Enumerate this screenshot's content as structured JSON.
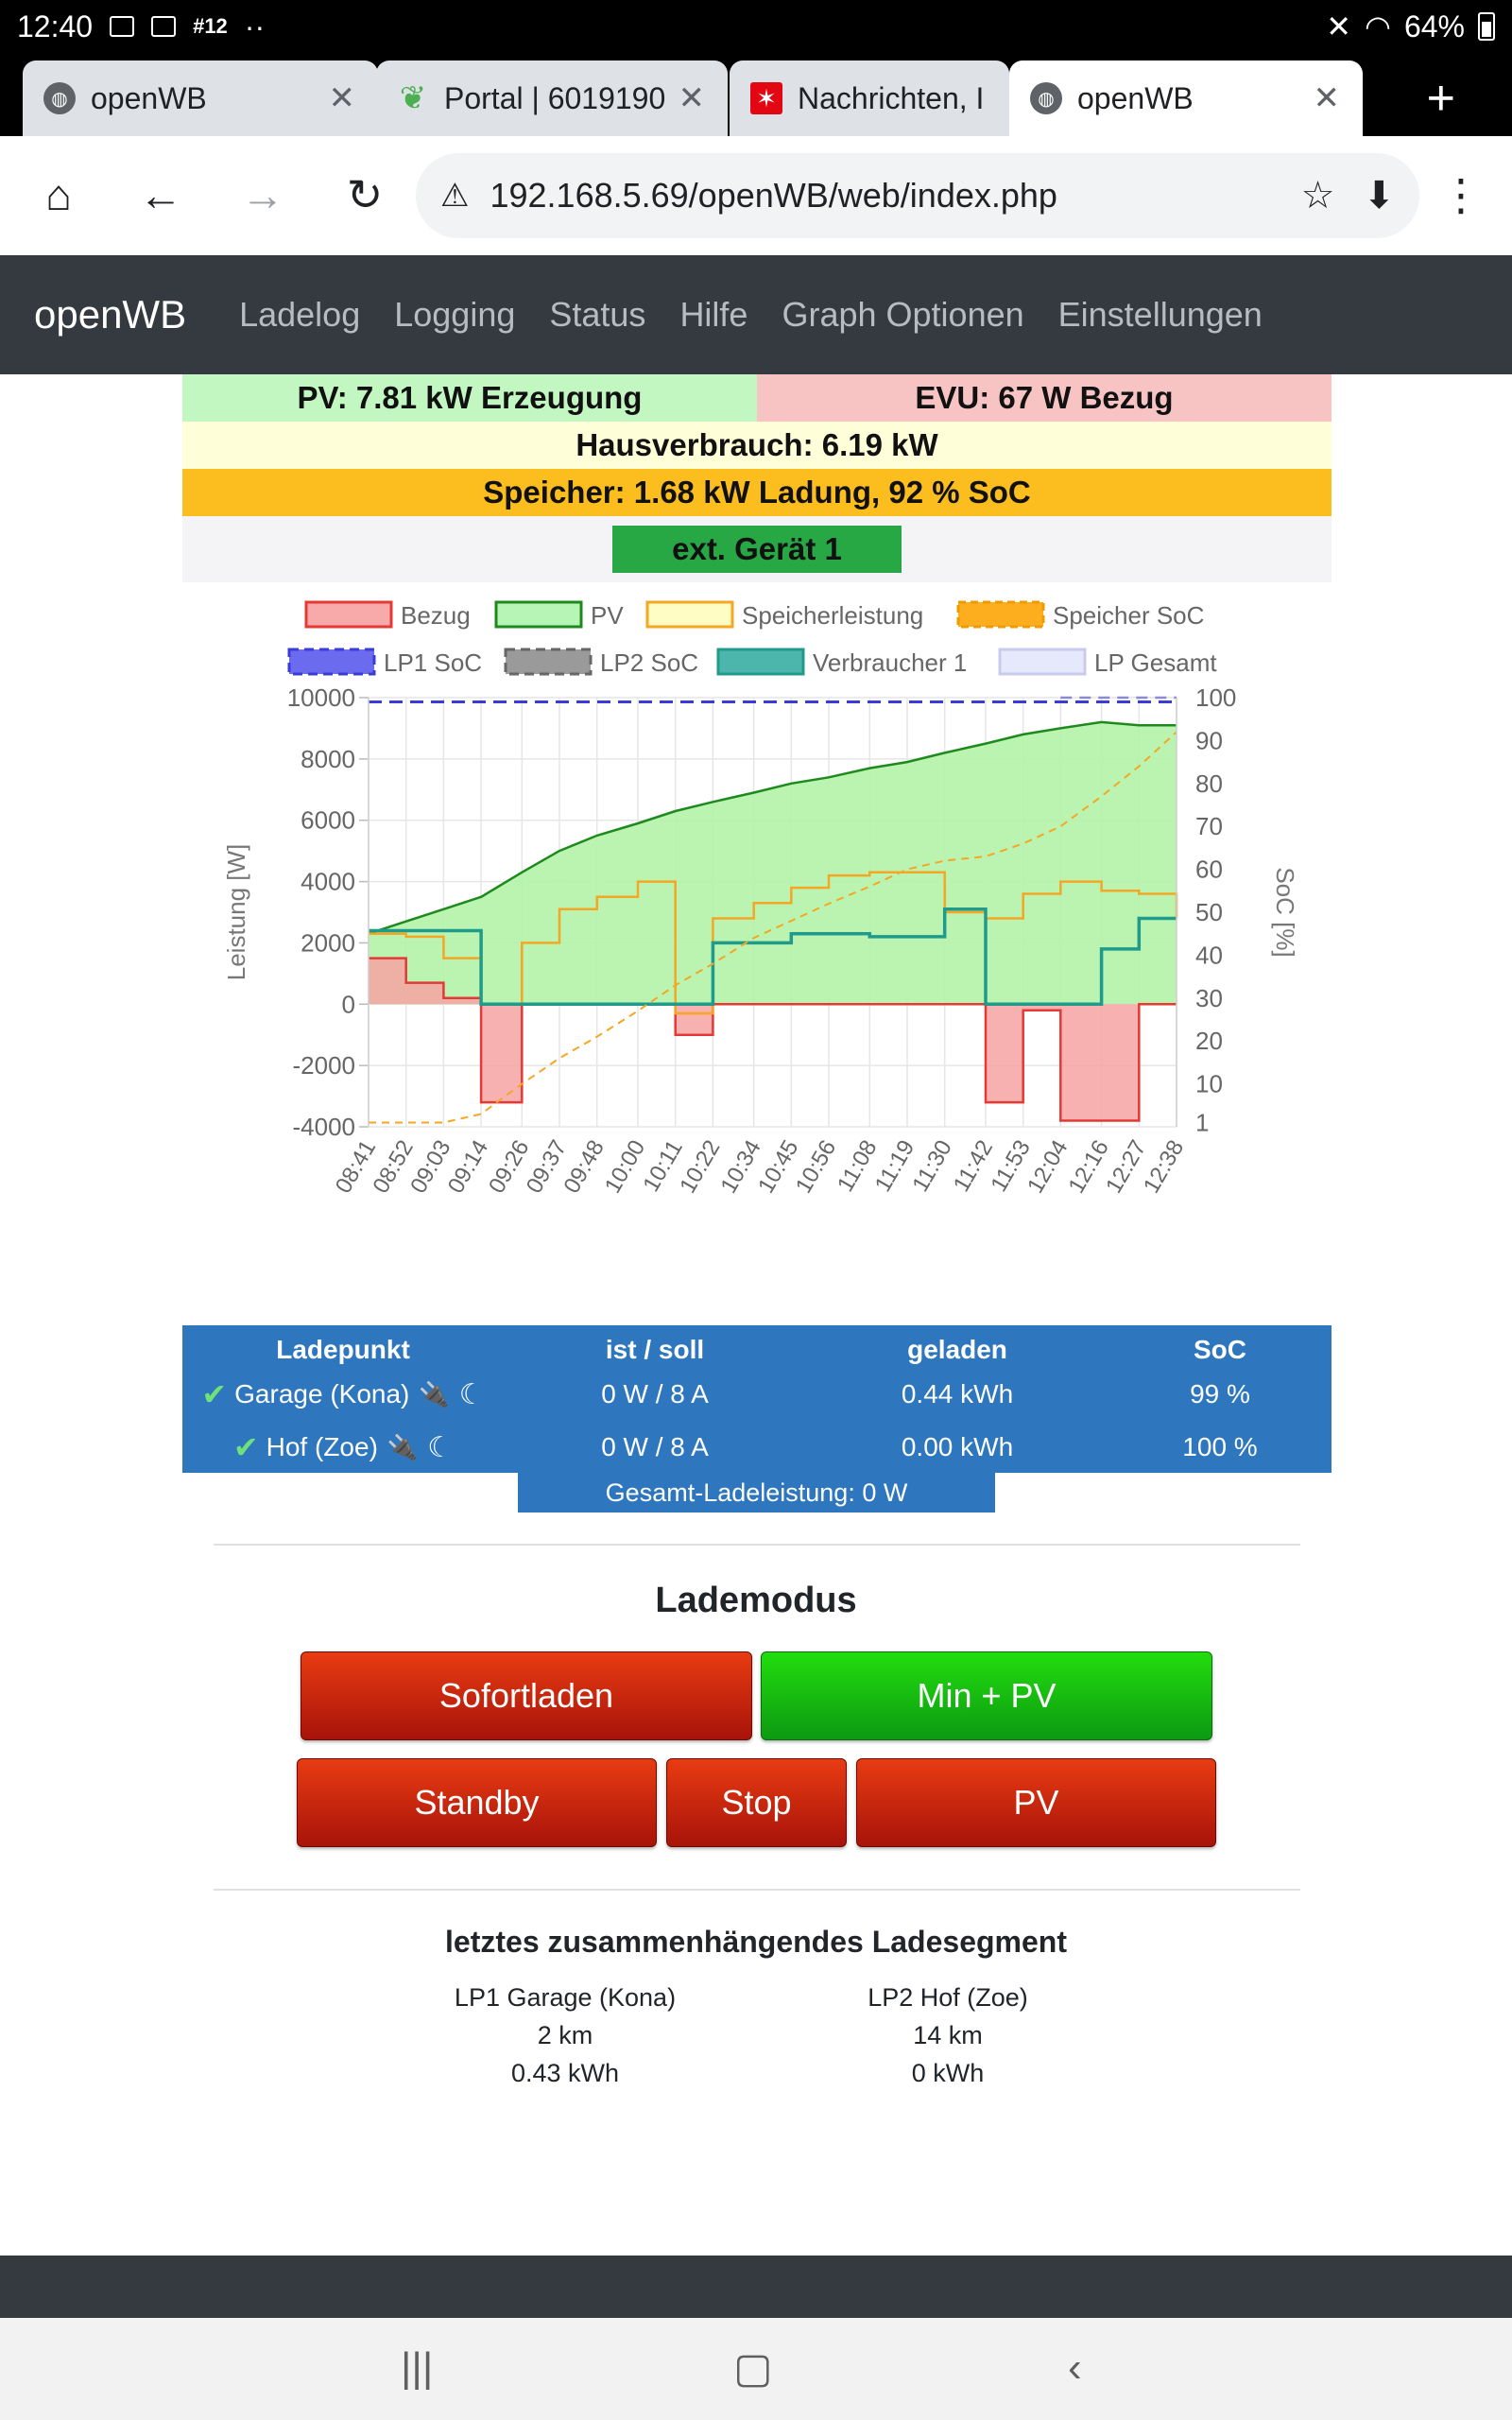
{
  "status_bar": {
    "time": "12:40",
    "extra": "#12",
    "dots": "··",
    "battery": "64%"
  },
  "tabs": [
    {
      "title": "openWB",
      "close": "✕",
      "icon": "globe-icon"
    },
    {
      "title": "Portal | 6019190",
      "close": "✕",
      "icon": "leaf-icon"
    },
    {
      "title": "Nachrichten, I",
      "close": "",
      "icon": "stern-icon"
    },
    {
      "title": "openWB",
      "close": "✕",
      "icon": "globe-icon"
    }
  ],
  "new_tab": "+",
  "address": {
    "url": "192.168.5.69/openWB/web/index.php"
  },
  "navbar": {
    "brand": "openWB",
    "links": [
      "Ladelog",
      "Logging",
      "Status",
      "Hilfe",
      "Graph Optionen",
      "Einstellungen"
    ]
  },
  "summary": {
    "pv": "PV: 7.81 kW Erzeugung",
    "evu": "EVU: 67 W Bezug",
    "haus": "Hausverbrauch: 6.19 kW",
    "speicher": "Speicher: 1.68 kW Ladung, 92 % SoC",
    "ext": "ext. Gerät 1"
  },
  "colors": {
    "pv_bg": "#c2f7c2",
    "evu_bg": "#f8c3c3",
    "haus_bg": "#fefed8",
    "speicher_bg": "#fcbe1e",
    "ext_btn": "#28a745",
    "table_bg": "#2e77be",
    "navbar_bg": "#343a40",
    "bezug": "#e53935",
    "pv_line": "#1e8a1e",
    "speicher_line": "#f5a623",
    "verbraucher": "#1f9b8c",
    "lp1_soc": "#3b3bd6",
    "lp2_soc": "#777777"
  },
  "chart_data": {
    "type": "line",
    "legend": [
      "Bezug",
      "PV",
      "Speicherleistung",
      "Speicher SoC",
      "LP1 SoC",
      "LP2 SoC",
      "Verbraucher 1",
      "LP Gesamt"
    ],
    "ylabel": "Leistung [W]",
    "y2label": "SoC [%]",
    "ylim": [
      -4000,
      10000
    ],
    "y2lim": [
      0,
      100
    ],
    "y_ticks": [
      "10000",
      "8000",
      "6000",
      "4000",
      "2000",
      "0",
      "-2000",
      "-4000"
    ],
    "y2_ticks": [
      "100",
      "90",
      "80",
      "70",
      "60",
      "50",
      "40",
      "30",
      "20",
      "10",
      "1"
    ],
    "x_ticks": [
      "08:41",
      "08:52",
      "09:03",
      "09:14",
      "09:26",
      "09:37",
      "09:48",
      "10:00",
      "10:11",
      "10:22",
      "10:34",
      "10:45",
      "10:56",
      "11:08",
      "11:19",
      "11:30",
      "11:42",
      "11:53",
      "12:04",
      "12:16",
      "12:27",
      "12:38"
    ],
    "grid": true,
    "legend_position": "top",
    "series": [
      {
        "name": "PV",
        "x": [
          "08:41",
          "08:52",
          "09:03",
          "09:14",
          "09:26",
          "09:37",
          "09:48",
          "10:00",
          "10:11",
          "10:22",
          "10:34",
          "10:45",
          "10:56",
          "11:08",
          "11:19",
          "11:30",
          "11:42",
          "11:53",
          "12:04",
          "12:16",
          "12:27",
          "12:38"
        ],
        "values": [
          2300,
          2700,
          3100,
          3500,
          4300,
          5000,
          5500,
          5900,
          6300,
          6600,
          6900,
          7200,
          7400,
          7700,
          7900,
          8200,
          8500,
          8800,
          9000,
          9200,
          9100,
          9100
        ]
      },
      {
        "name": "Speicherleistung",
        "x": [
          "08:41",
          "08:52",
          "09:03",
          "09:14",
          "09:26",
          "09:37",
          "09:48",
          "10:00",
          "10:11",
          "10:22",
          "10:34",
          "10:45",
          "10:56",
          "11:08",
          "11:19",
          "11:30",
          "11:42",
          "11:53",
          "12:04",
          "12:16",
          "12:27",
          "12:38"
        ],
        "values": [
          2300,
          2200,
          1500,
          0,
          2000,
          3100,
          3500,
          4000,
          -300,
          2800,
          3300,
          3800,
          4200,
          4300,
          4300,
          3000,
          2800,
          3600,
          4000,
          3700,
          3600,
          2800
        ]
      },
      {
        "name": "Verbraucher 1",
        "x": [
          "08:41",
          "08:52",
          "09:03",
          "09:14",
          "09:26",
          "09:37",
          "09:48",
          "10:00",
          "10:11",
          "10:22",
          "10:34",
          "10:45",
          "10:56",
          "11:08",
          "11:19",
          "11:30",
          "11:42",
          "11:53",
          "12:04",
          "12:16",
          "12:27",
          "12:38"
        ],
        "values": [
          2400,
          2400,
          2400,
          0,
          0,
          0,
          0,
          0,
          0,
          2000,
          2000,
          2300,
          2300,
          2200,
          2200,
          3100,
          0,
          0,
          0,
          1800,
          2800,
          2800
        ]
      },
      {
        "name": "Bezug",
        "x": [
          "08:41",
          "08:52",
          "09:03",
          "09:14",
          "09:26",
          "09:37",
          "09:48",
          "10:00",
          "10:11",
          "10:22",
          "10:34",
          "10:45",
          "10:56",
          "11:08",
          "11:19",
          "11:30",
          "11:42",
          "11:53",
          "12:04",
          "12:16",
          "12:27",
          "12:38"
        ],
        "values": [
          1500,
          700,
          200,
          -3200,
          0,
          0,
          0,
          0,
          -1000,
          0,
          0,
          0,
          0,
          0,
          0,
          0,
          -3200,
          -200,
          -3800,
          -3800,
          0,
          0
        ]
      },
      {
        "name": "Speicher SoC",
        "x": [
          "08:41",
          "08:52",
          "09:03",
          "09:14",
          "09:26",
          "09:37",
          "09:48",
          "10:00",
          "10:11",
          "10:22",
          "10:34",
          "10:45",
          "10:56",
          "11:08",
          "11:19",
          "11:30",
          "11:42",
          "11:53",
          "12:04",
          "12:16",
          "12:27",
          "12:38"
        ],
        "values": [
          1,
          1,
          1,
          3,
          10,
          16,
          21,
          27,
          33,
          38,
          44,
          48,
          52,
          56,
          60,
          62,
          63,
          66,
          70,
          77,
          84,
          92
        ]
      },
      {
        "name": "LP1 SoC",
        "x": [
          "08:41",
          "12:38"
        ],
        "values": [
          99,
          99
        ]
      },
      {
        "name": "LP2 SoC",
        "x": [
          "12:04",
          "12:38"
        ],
        "values": [
          100,
          100
        ]
      }
    ]
  },
  "lp_table": {
    "headers": [
      "Ladepunkt",
      "ist / soll",
      "geladen",
      "SoC"
    ],
    "rows": [
      {
        "name": "Garage (Kona)",
        "ist": "0 W / 8 A",
        "geladen": "0.44 kWh",
        "soc": "99 %"
      },
      {
        "name": "Hof (Zoe)",
        "ist": "0 W / 8 A",
        "geladen": "0.00 kWh",
        "soc": "100 %"
      }
    ],
    "gesamt": "Gesamt-Ladeleistung: 0 W"
  },
  "lademodus": {
    "title": "Lademodus",
    "buttons": {
      "sofortladen": "Sofortladen",
      "minpv": "Min + PV",
      "standby": "Standby",
      "stop": "Stop",
      "pv": "PV"
    }
  },
  "segment": {
    "title": "letztes zusammenhängendes Ladesegment",
    "lp1": {
      "name": "LP1 Garage (Kona)",
      "km": "2 km",
      "kwh": "0.43 kWh"
    },
    "lp2": {
      "name": "LP2 Hof (Zoe)",
      "km": "14 km",
      "kwh": "0 kWh"
    }
  }
}
